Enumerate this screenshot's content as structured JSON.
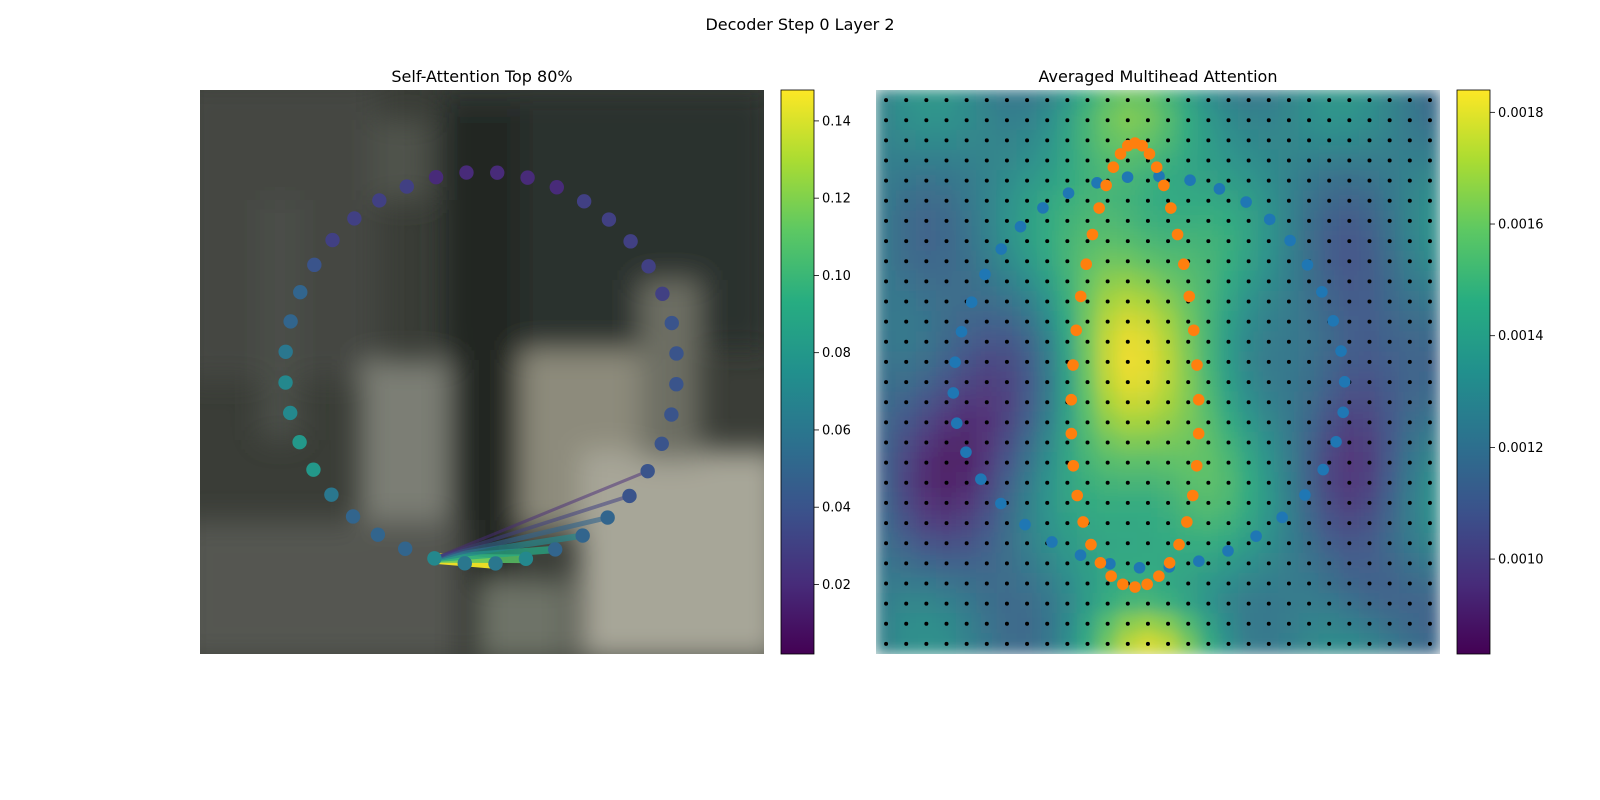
{
  "figure": {
    "suptitle": "Decoder Step 0 Layer 2"
  },
  "chart_data": [
    {
      "type": "scatter",
      "title": "Self-Attention Top 80%",
      "background": "blurred video frame",
      "colormap": "viridis",
      "num_points": 40,
      "colorbar": {
        "range": [
          0.002,
          0.148
        ],
        "ticks": [
          "0.02",
          "0.04",
          "0.06",
          "0.08",
          "0.10",
          "0.12",
          "0.14"
        ],
        "tick_values": [
          0.02,
          0.04,
          0.06,
          0.08,
          0.1,
          0.12,
          0.14
        ]
      },
      "point_values": [
        0.07,
        0.06,
        0.06,
        0.07,
        0.05,
        0.05,
        0.05,
        0.04,
        0.04,
        0.04,
        0.04,
        0.04,
        0.04,
        0.04,
        0.03,
        0.03,
        0.03,
        0.03,
        0.03,
        0.02,
        0.02,
        0.02,
        0.02,
        0.02,
        0.03,
        0.03,
        0.03,
        0.03,
        0.04,
        0.05,
        0.05,
        0.06,
        0.07,
        0.07,
        0.08,
        0.08,
        0.06,
        0.05,
        0.05,
        0.05
      ],
      "query_point_index": 0,
      "attention_lines": [
        {
          "to_index": 2,
          "weight": 0.146
        },
        {
          "to_index": 3,
          "weight": 0.11
        },
        {
          "to_index": 4,
          "weight": 0.09
        },
        {
          "to_index": 5,
          "weight": 0.07
        },
        {
          "to_index": 6,
          "weight": 0.05
        },
        {
          "to_index": 7,
          "weight": 0.03
        },
        {
          "to_index": 8,
          "weight": 0.02
        }
      ]
    },
    {
      "type": "heatmap",
      "title": "Averaged Multihead Attention",
      "colormap": "viridis",
      "grid_size": [
        28,
        28
      ],
      "colorbar": {
        "range": [
          0.00083,
          0.00184
        ],
        "ticks": [
          "0.0010",
          "0.0012",
          "0.0014",
          "0.0016",
          "0.0018"
        ],
        "tick_values": [
          0.001,
          0.0012,
          0.0014,
          0.0016,
          0.0018
        ]
      },
      "overlays": [
        {
          "name": "reference points",
          "color": "#000000",
          "count": 784
        },
        {
          "name": "predicted contour",
          "color": "#1f77b4",
          "count": 40
        },
        {
          "name": "ground-truth contour",
          "color": "#ff7f0e",
          "count": 40
        }
      ]
    }
  ]
}
